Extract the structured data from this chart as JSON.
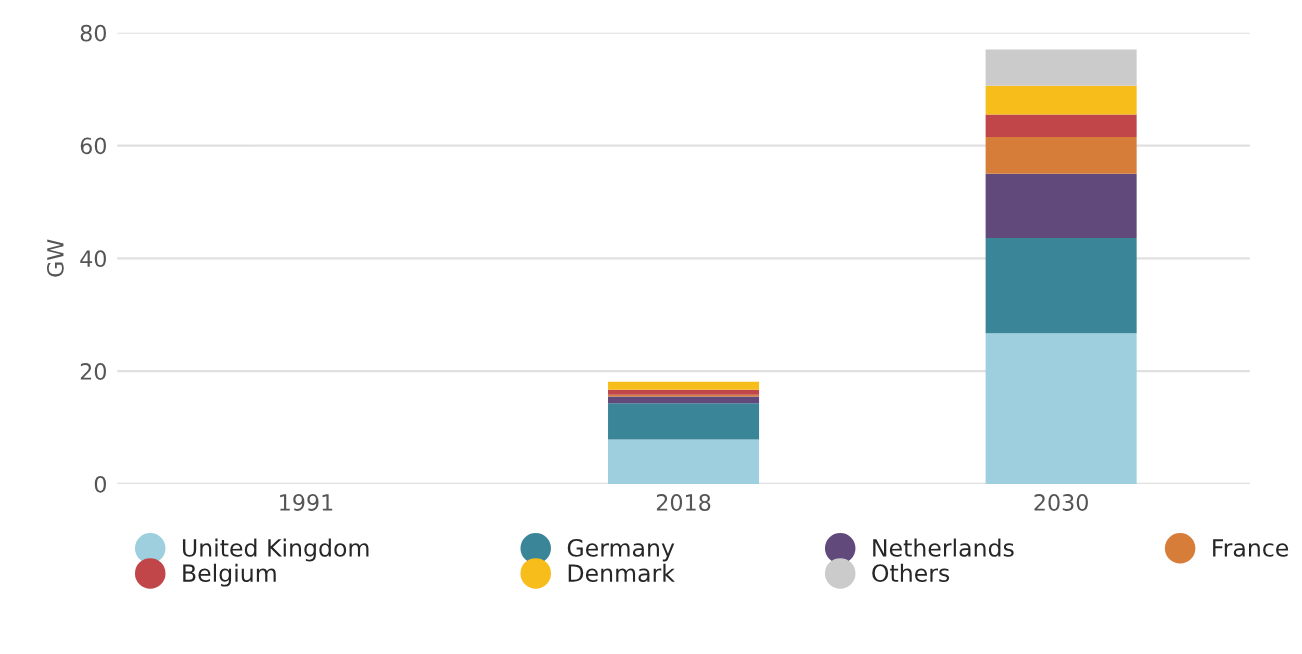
{
  "chart_data": {
    "type": "bar",
    "stacked": true,
    "ylabel": "GW",
    "categories": [
      "1991",
      "2018",
      "2030"
    ],
    "series": [
      {
        "name": "United Kingdom",
        "color": "#9dcfdf",
        "values": [
          0,
          7.9,
          26.7
        ]
      },
      {
        "name": "Germany",
        "color": "#3b8599",
        "values": [
          0,
          6.4,
          16.9
        ]
      },
      {
        "name": "Netherlands",
        "color": "#614a7b",
        "values": [
          0,
          1.2,
          11.4
        ]
      },
      {
        "name": "France",
        "color": "#d77d3a",
        "values": [
          0,
          0.3,
          6.5
        ]
      },
      {
        "name": "Belgium",
        "color": "#c1464a",
        "values": [
          0,
          0.9,
          4.0
        ]
      },
      {
        "name": "Denmark",
        "color": "#f7bd1a",
        "values": [
          0,
          1.4,
          5.1
        ]
      },
      {
        "name": "Others",
        "color": "#cbcbcb",
        "values": [
          0,
          null,
          6.4
        ]
      }
    ],
    "ylim": [
      0,
      80
    ],
    "yticks": [
      0,
      20,
      40,
      60,
      80
    ],
    "grid": "y",
    "legend": "bottom"
  }
}
